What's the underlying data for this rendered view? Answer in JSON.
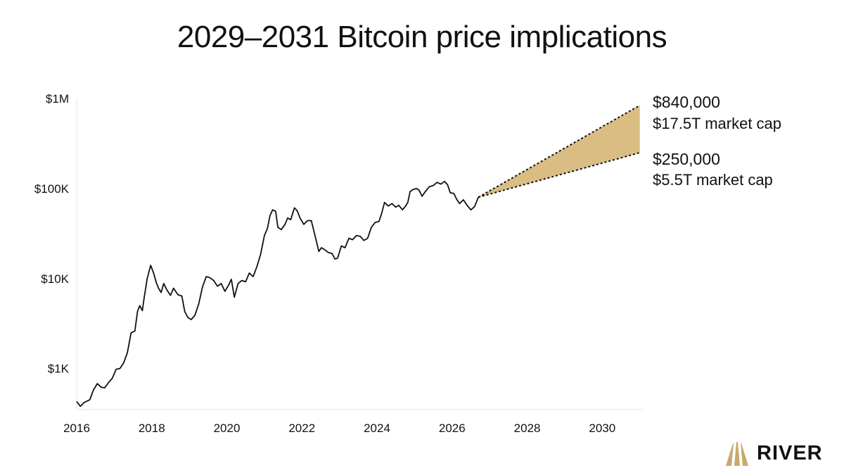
{
  "chart_data": {
    "type": "line",
    "title": "2029–2031 Bitcoin price implications",
    "y_scale": "log",
    "ylim": [
      350,
      1000000
    ],
    "xlim": [
      2016,
      2031.1
    ],
    "y_ticks": [
      {
        "value": 1000,
        "label": "$1K"
      },
      {
        "value": 10000,
        "label": "$10K"
      },
      {
        "value": 100000,
        "label": "$100K"
      },
      {
        "value": 1000000,
        "label": "$1M"
      }
    ],
    "x_ticks": [
      2016,
      2018,
      2020,
      2022,
      2024,
      2026,
      2028,
      2030
    ],
    "grid": false,
    "series": [
      {
        "color": "#111111",
        "points": [
          [
            2016.0,
            430
          ],
          [
            2016.1,
            380
          ],
          [
            2016.2,
            420
          ],
          [
            2016.35,
            450
          ],
          [
            2016.45,
            580
          ],
          [
            2016.55,
            680
          ],
          [
            2016.65,
            620
          ],
          [
            2016.75,
            610
          ],
          [
            2016.85,
            700
          ],
          [
            2016.95,
            780
          ],
          [
            2017.05,
            980
          ],
          [
            2017.15,
            1000
          ],
          [
            2017.25,
            1150
          ],
          [
            2017.35,
            1500
          ],
          [
            2017.45,
            2500
          ],
          [
            2017.55,
            2600
          ],
          [
            2017.62,
            4300
          ],
          [
            2017.68,
            5000
          ],
          [
            2017.75,
            4400
          ],
          [
            2017.8,
            6200
          ],
          [
            2017.88,
            10000
          ],
          [
            2017.97,
            14000
          ],
          [
            2018.05,
            11500
          ],
          [
            2018.12,
            9000
          ],
          [
            2018.18,
            7800
          ],
          [
            2018.25,
            7000
          ],
          [
            2018.32,
            8800
          ],
          [
            2018.4,
            7500
          ],
          [
            2018.5,
            6500
          ],
          [
            2018.58,
            7800
          ],
          [
            2018.7,
            6600
          ],
          [
            2018.8,
            6400
          ],
          [
            2018.88,
            4300
          ],
          [
            2018.96,
            3700
          ],
          [
            2019.05,
            3500
          ],
          [
            2019.15,
            3900
          ],
          [
            2019.25,
            5200
          ],
          [
            2019.35,
            8000
          ],
          [
            2019.45,
            10500
          ],
          [
            2019.55,
            10200
          ],
          [
            2019.65,
            9500
          ],
          [
            2019.75,
            8200
          ],
          [
            2019.85,
            8800
          ],
          [
            2019.95,
            7200
          ],
          [
            2020.05,
            8500
          ],
          [
            2020.12,
            9800
          ],
          [
            2020.2,
            6200
          ],
          [
            2020.3,
            8800
          ],
          [
            2020.4,
            9500
          ],
          [
            2020.5,
            9200
          ],
          [
            2020.6,
            11500
          ],
          [
            2020.7,
            10500
          ],
          [
            2020.8,
            13500
          ],
          [
            2020.9,
            18500
          ],
          [
            2021.0,
            30000
          ],
          [
            2021.08,
            36000
          ],
          [
            2021.15,
            50000
          ],
          [
            2021.22,
            58000
          ],
          [
            2021.3,
            56000
          ],
          [
            2021.36,
            37000
          ],
          [
            2021.45,
            35000
          ],
          [
            2021.55,
            40000
          ],
          [
            2021.62,
            47000
          ],
          [
            2021.7,
            45000
          ],
          [
            2021.8,
            61000
          ],
          [
            2021.87,
            57000
          ],
          [
            2021.95,
            47000
          ],
          [
            2022.05,
            40000
          ],
          [
            2022.15,
            44000
          ],
          [
            2022.25,
            44000
          ],
          [
            2022.35,
            30000
          ],
          [
            2022.45,
            20000
          ],
          [
            2022.52,
            22000
          ],
          [
            2022.6,
            21000
          ],
          [
            2022.7,
            19500
          ],
          [
            2022.8,
            19000
          ],
          [
            2022.88,
            16500
          ],
          [
            2022.95,
            16800
          ],
          [
            2023.05,
            23000
          ],
          [
            2023.15,
            22000
          ],
          [
            2023.25,
            28000
          ],
          [
            2023.35,
            27000
          ],
          [
            2023.45,
            30000
          ],
          [
            2023.55,
            29500
          ],
          [
            2023.65,
            26500
          ],
          [
            2023.75,
            28000
          ],
          [
            2023.85,
            37000
          ],
          [
            2023.95,
            42000
          ],
          [
            2024.05,
            43000
          ],
          [
            2024.12,
            52000
          ],
          [
            2024.2,
            70000
          ],
          [
            2024.3,
            64000
          ],
          [
            2024.4,
            68000
          ],
          [
            2024.5,
            62000
          ],
          [
            2024.58,
            65000
          ],
          [
            2024.68,
            58000
          ],
          [
            2024.75,
            63000
          ],
          [
            2024.82,
            70000
          ],
          [
            2024.88,
            92000
          ],
          [
            2024.95,
            97000
          ],
          [
            2025.05,
            100000
          ],
          [
            2025.12,
            96000
          ],
          [
            2025.2,
            82000
          ],
          [
            2025.3,
            94000
          ],
          [
            2025.4,
            105000
          ],
          [
            2025.5,
            108000
          ],
          [
            2025.6,
            117000
          ],
          [
            2025.7,
            112000
          ],
          [
            2025.8,
            120000
          ],
          [
            2025.88,
            110000
          ],
          [
            2025.95,
            90000
          ],
          [
            2026.05,
            88000
          ],
          [
            2026.12,
            76000
          ],
          [
            2026.2,
            68000
          ],
          [
            2026.3,
            75000
          ],
          [
            2026.4,
            65000
          ],
          [
            2026.5,
            58000
          ],
          [
            2026.6,
            63000
          ],
          [
            2026.7,
            80000
          ]
        ]
      }
    ],
    "projection": {
      "start": [
        2026.7,
        80000
      ],
      "end_year": 2031.0,
      "high": 840000,
      "low": 250000,
      "fill_color": "#d9bd82"
    },
    "annotations": [
      {
        "price": "$840,000",
        "cap": "$17.5T market cap"
      },
      {
        "price": "$250,000",
        "cap": "$5.5T market cap"
      }
    ]
  },
  "logo": {
    "text": "RIVER",
    "color": "#c8a96b"
  }
}
